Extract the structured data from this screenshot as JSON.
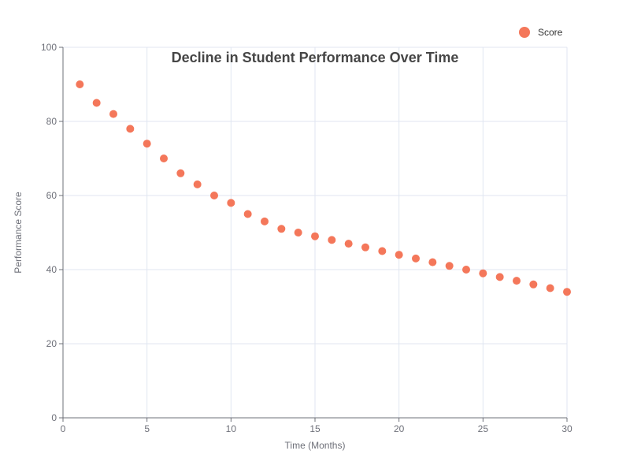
{
  "chart_data": {
    "type": "scatter",
    "title": "Decline in Student Performance Over Time",
    "xlabel": "Time (Months)",
    "ylabel": "Performance Score",
    "xlim": [
      0,
      30
    ],
    "ylim": [
      0,
      100
    ],
    "x_ticks": [
      0,
      5,
      10,
      15,
      20,
      25,
      30
    ],
    "y_ticks": [
      0,
      20,
      40,
      60,
      80,
      100
    ],
    "grid": true,
    "legend_position": "top-right",
    "series": [
      {
        "name": "Score",
        "color": "#f4775a",
        "points": [
          {
            "x": 1,
            "y": 90
          },
          {
            "x": 2,
            "y": 85
          },
          {
            "x": 3,
            "y": 82
          },
          {
            "x": 4,
            "y": 78
          },
          {
            "x": 5,
            "y": 74
          },
          {
            "x": 6,
            "y": 70
          },
          {
            "x": 7,
            "y": 66
          },
          {
            "x": 8,
            "y": 63
          },
          {
            "x": 9,
            "y": 60
          },
          {
            "x": 10,
            "y": 58
          },
          {
            "x": 11,
            "y": 55
          },
          {
            "x": 12,
            "y": 53
          },
          {
            "x": 13,
            "y": 51
          },
          {
            "x": 14,
            "y": 50
          },
          {
            "x": 15,
            "y": 49
          },
          {
            "x": 16,
            "y": 48
          },
          {
            "x": 17,
            "y": 47
          },
          {
            "x": 18,
            "y": 46
          },
          {
            "x": 19,
            "y": 45
          },
          {
            "x": 20,
            "y": 44
          },
          {
            "x": 21,
            "y": 43
          },
          {
            "x": 22,
            "y": 42
          },
          {
            "x": 23,
            "y": 41
          },
          {
            "x": 24,
            "y": 40
          },
          {
            "x": 25,
            "y": 39
          },
          {
            "x": 26,
            "y": 38
          },
          {
            "x": 27,
            "y": 37
          },
          {
            "x": 28,
            "y": 36
          },
          {
            "x": 29,
            "y": 35
          },
          {
            "x": 30,
            "y": 34
          }
        ]
      }
    ]
  }
}
